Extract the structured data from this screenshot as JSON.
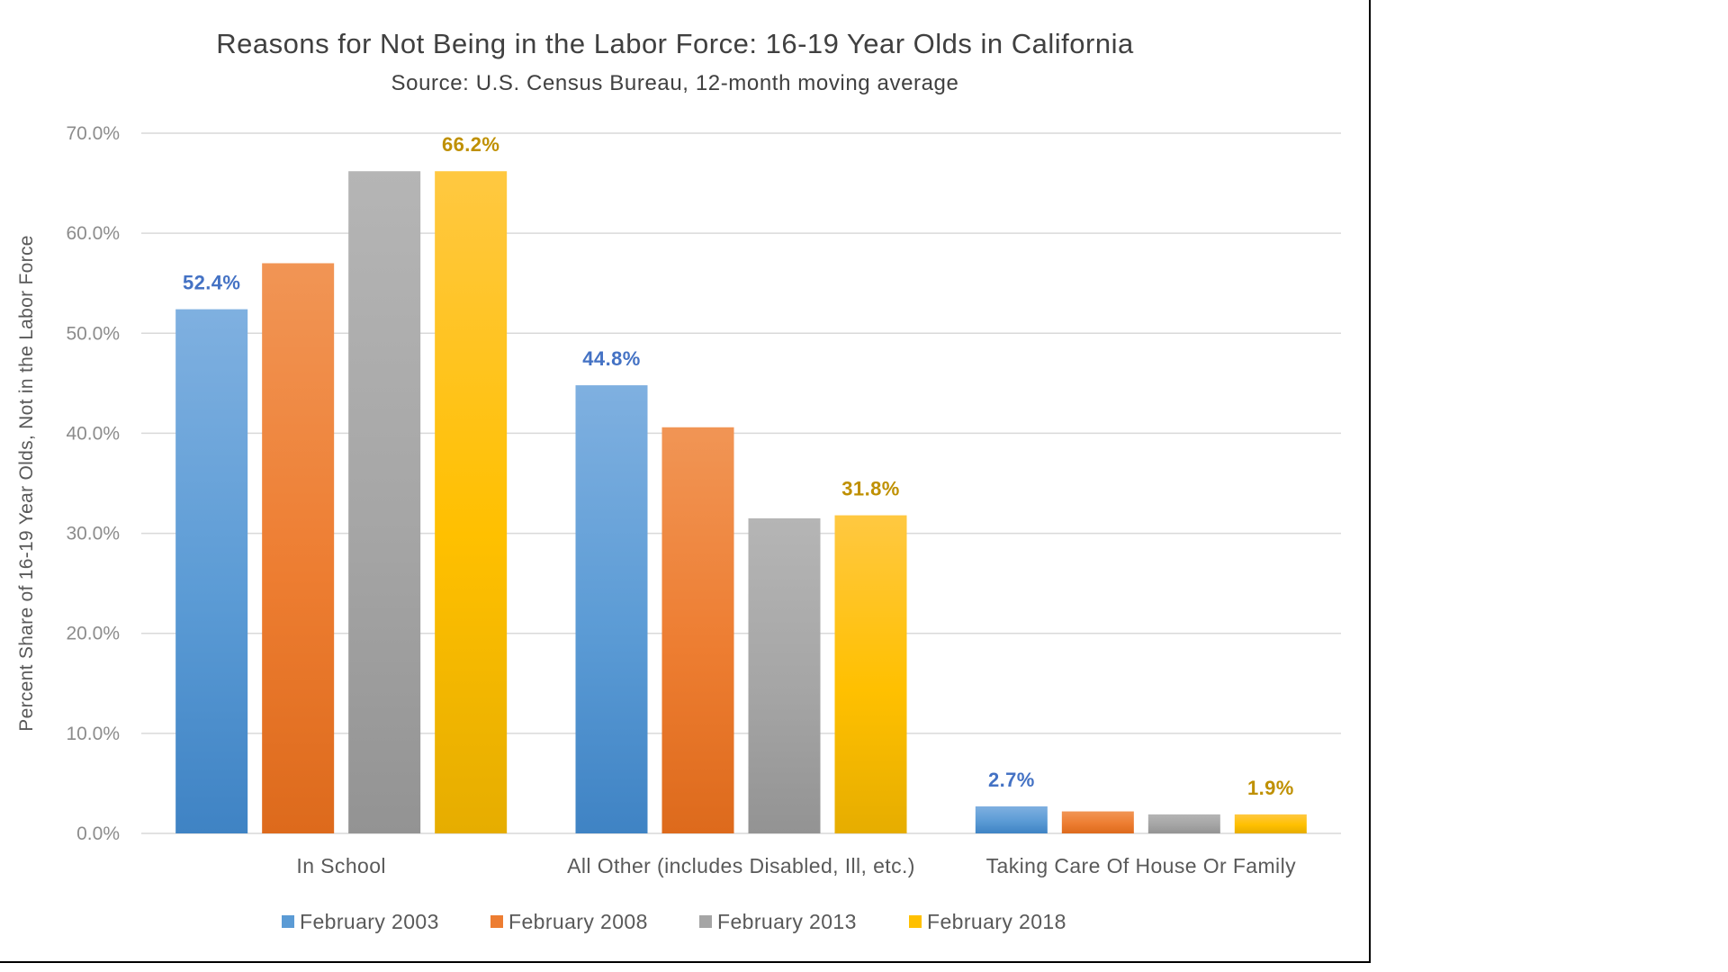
{
  "chart_data": {
    "type": "bar",
    "title": "Reasons for Not Being in the Labor Force: 16-19 Year Olds in California",
    "subtitle": "Source: U.S. Census Bureau, 12-month moving average",
    "xlabel": "",
    "ylabel": "Percent Share of 16-19 Year Olds, Not in the Labor Force",
    "ylim": [
      0,
      70
    ],
    "yticks": [
      "0.0%",
      "10.0%",
      "20.0%",
      "30.0%",
      "40.0%",
      "50.0%",
      "60.0%",
      "70.0%"
    ],
    "grid": true,
    "legend_position": "bottom",
    "categories": [
      "In School",
      "All Other (includes Disabled, Ill, etc.)",
      "Taking Care Of House Or Family"
    ],
    "series": [
      {
        "name": "February 2003",
        "values": [
          52.4,
          44.8,
          2.7
        ],
        "color": "#5b9bd5",
        "color_light": "#7fb0e0",
        "color_dark": "#3f83c4",
        "label_color": "#4472c4",
        "labels": [
          "52.4%",
          "44.8%",
          "2.7%"
        ]
      },
      {
        "name": "February 2008",
        "values": [
          57.0,
          40.6,
          2.2
        ],
        "color": "#ed7d31",
        "color_light": "#f19555",
        "color_dark": "#dd6a1c",
        "label_color": "#c55a11",
        "labels": [
          "",
          "",
          ""
        ]
      },
      {
        "name": "February 2013",
        "values": [
          66.2,
          31.5,
          1.9
        ],
        "color": "#a5a5a5",
        "color_light": "#b5b5b5",
        "color_dark": "#939393",
        "label_color": "#7f7f7f",
        "labels": [
          "",
          "",
          ""
        ]
      },
      {
        "name": "February 2018",
        "values": [
          66.2,
          31.8,
          1.9
        ],
        "color": "#ffc000",
        "color_light": "#ffc841",
        "color_dark": "#e6ad00",
        "label_color": "#bf9000",
        "labels": [
          "66.2%",
          "31.8%",
          "1.9%"
        ]
      }
    ]
  }
}
